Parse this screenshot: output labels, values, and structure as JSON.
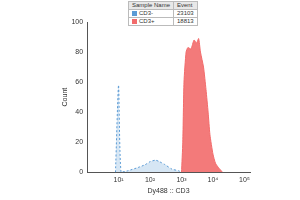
{
  "chart_data": {
    "type": "line",
    "x_label": "Dy488 :: CD3",
    "y_label": "Count",
    "legend_table": {
      "columns": [
        "Sample Name",
        "Event"
      ]
    },
    "series": [
      {
        "name": "CD3-",
        "color": "#5b9bd5",
        "line_style": "dashed",
        "events": 23103,
        "x": [
          8,
          10,
          12,
          20,
          40,
          70,
          100,
          150,
          200,
          300,
          500,
          800,
          1000
        ],
        "values": [
          0,
          58,
          0,
          1,
          3,
          5,
          7,
          8,
          7,
          5,
          2,
          1,
          0
        ]
      },
      {
        "name": "CD3+",
        "color": "#f26b6b",
        "line_style": "solid",
        "events": 18813,
        "x": [
          1000,
          1100,
          1200,
          1400,
          1600,
          2000,
          2500,
          3000,
          3500,
          4000,
          5000,
          6000,
          7000,
          8000,
          10000,
          12000,
          15000,
          20000
        ],
        "values": [
          0,
          20,
          60,
          80,
          83,
          82,
          88,
          86,
          89,
          80,
          70,
          55,
          40,
          25,
          12,
          6,
          3,
          0
        ]
      }
    ],
    "log": "x",
    "xlim": [
      1,
      150000
    ],
    "xticks": [
      {
        "value": 10,
        "label": "10¹"
      },
      {
        "value": 100,
        "label": "10²"
      },
      {
        "value": 1000,
        "label": "10³"
      },
      {
        "value": 10000,
        "label": "10⁴"
      },
      {
        "value": 100000,
        "label": "10⁵"
      }
    ],
    "ylim": [
      0,
      100
    ],
    "yticks": [
      0,
      20,
      40,
      60,
      80,
      100
    ],
    "grid": false
  }
}
